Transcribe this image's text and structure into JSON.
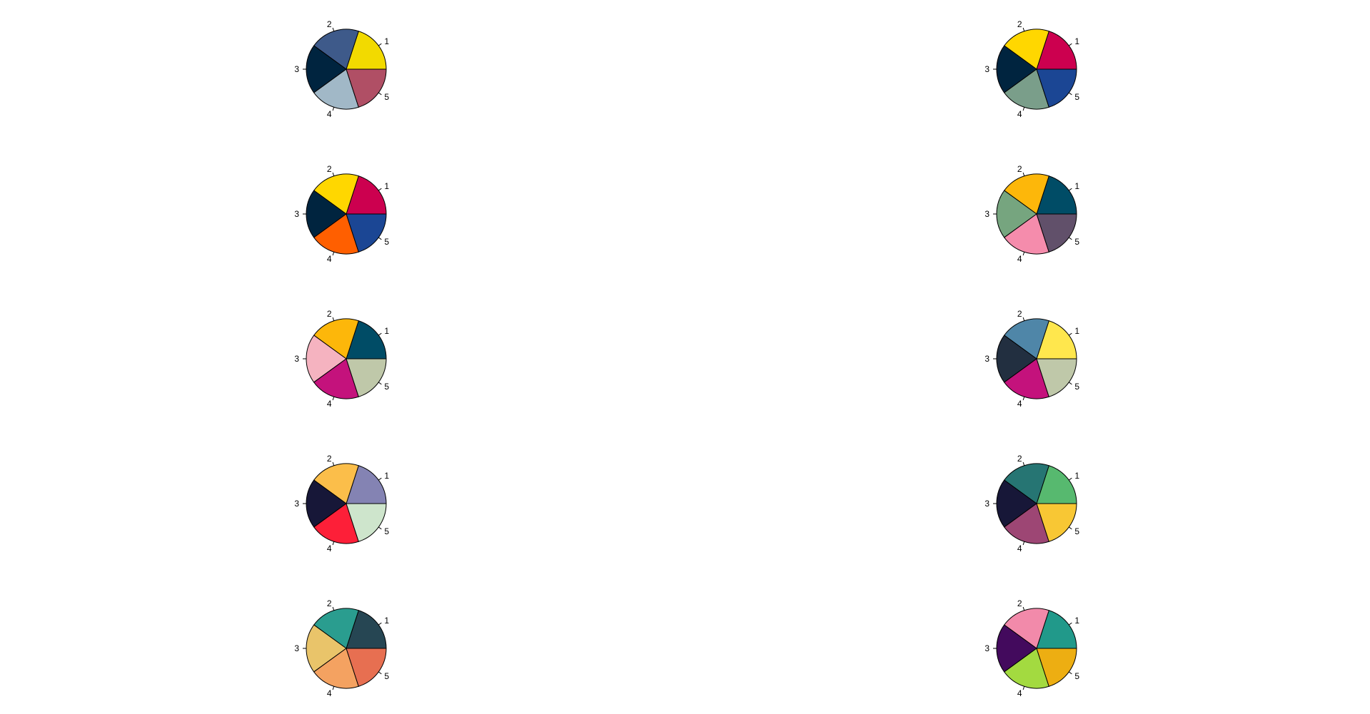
{
  "chart_data": [
    {
      "type": "pie",
      "labels": [
        "1",
        "2",
        "3",
        "4",
        "5"
      ],
      "values": [
        1,
        1,
        1,
        1,
        1
      ],
      "colors": [
        "#F2DA00",
        "#3E5A8A",
        "#00243F",
        "#A1B8C7",
        "#B04F65"
      ]
    },
    {
      "type": "pie",
      "labels": [
        "1",
        "2",
        "3",
        "4",
        "5"
      ],
      "values": [
        1,
        1,
        1,
        1,
        1
      ],
      "colors": [
        "#CC004F",
        "#FFD700",
        "#00243F",
        "#7A9E8A",
        "#1B4694"
      ]
    },
    {
      "type": "pie",
      "labels": [
        "1",
        "2",
        "3",
        "4",
        "5"
      ],
      "values": [
        1,
        1,
        1,
        1,
        1
      ],
      "colors": [
        "#CC004F",
        "#FFD700",
        "#00243F",
        "#FF5F00",
        "#1B4694"
      ]
    },
    {
      "type": "pie",
      "labels": [
        "1",
        "2",
        "3",
        "4",
        "5"
      ],
      "values": [
        1,
        1,
        1,
        1,
        1
      ],
      "colors": [
        "#004C66",
        "#FDB70A",
        "#76A57F",
        "#F58CAC",
        "#61506A"
      ]
    },
    {
      "type": "pie",
      "labels": [
        "1",
        "2",
        "3",
        "4",
        "5"
      ],
      "values": [
        1,
        1,
        1,
        1,
        1
      ],
      "colors": [
        "#004C66",
        "#FDB70A",
        "#F5B3C0",
        "#C4127C",
        "#BFC8A9"
      ]
    },
    {
      "type": "pie",
      "labels": [
        "1",
        "2",
        "3",
        "4",
        "5"
      ],
      "values": [
        1,
        1,
        1,
        1,
        1
      ],
      "colors": [
        "#FFE74D",
        "#4F86A8",
        "#222F40",
        "#C4127C",
        "#BFC8A9"
      ]
    },
    {
      "type": "pie",
      "labels": [
        "1",
        "2",
        "3",
        "4",
        "5"
      ],
      "values": [
        1,
        1,
        1,
        1,
        1
      ],
      "colors": [
        "#8483B3",
        "#FBBE4A",
        "#171738",
        "#FD1F38",
        "#CEE5CC"
      ]
    },
    {
      "type": "pie",
      "labels": [
        "1",
        "2",
        "3",
        "4",
        "5"
      ],
      "values": [
        1,
        1,
        1,
        1,
        1
      ],
      "colors": [
        "#57B96F",
        "#267573",
        "#171738",
        "#9D4674",
        "#F8C734"
      ]
    },
    {
      "type": "pie",
      "labels": [
        "1",
        "2",
        "3",
        "4",
        "5"
      ],
      "values": [
        1,
        1,
        1,
        1,
        1
      ],
      "colors": [
        "#264653",
        "#2A9D8F",
        "#E9C46A",
        "#F4A261",
        "#E76F51"
      ]
    },
    {
      "type": "pie",
      "labels": [
        "1",
        "2",
        "3",
        "4",
        "5"
      ],
      "values": [
        1,
        1,
        1,
        1,
        1
      ],
      "colors": [
        "#21998A",
        "#F28AAA",
        "#430A5D",
        "#A3DA40",
        "#EDAE12"
      ]
    }
  ]
}
